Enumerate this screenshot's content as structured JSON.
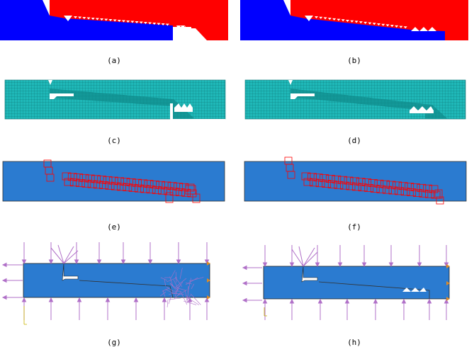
{
  "panels": [
    {
      "id": "a",
      "label": "(a)"
    },
    {
      "id": "b",
      "label": "(b)"
    },
    {
      "id": "c",
      "label": "(c)"
    },
    {
      "id": "d",
      "label": "(d)"
    },
    {
      "id": "e",
      "label": "(e)"
    },
    {
      "id": "f",
      "label": "(f)"
    },
    {
      "id": "g",
      "label": "(g)"
    },
    {
      "id": "h",
      "label": "(h)"
    }
  ],
  "colors": {
    "part_blue": "#0000ff",
    "part_red": "#ff0000",
    "mesh_teal": "#1fb8b8",
    "model_blue": "#2b7bd0",
    "contact_red": "#ff0000",
    "contact_magenta": "#cc33cc",
    "load_violet": "#b070c8",
    "bc_orange": "#d98a2a"
  }
}
